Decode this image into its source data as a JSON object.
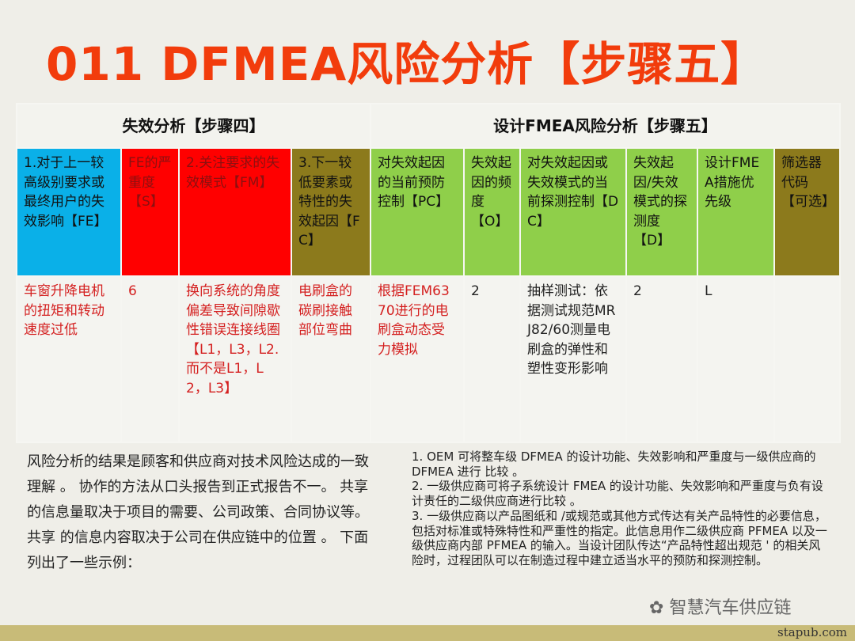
{
  "title": "011 DFMEA风险分析【步骤五】",
  "table": {
    "group_headers": [
      "失效分析【步骤四】",
      "设计FMEA风险分析【步骤五】"
    ],
    "columns": [
      "1.对于上一较高级别要求或最终用户的失效影响【FE】",
      "FE的严重度【S】",
      "2.关注要求的失效模式【FM】",
      "3.下一较低要素或特性的失效起因【FC】",
      "对失效起因的当前预防控制【PC】",
      "失效起因的频度【O】",
      "对失效起因或失效模式的当前探测控制【DC】",
      "失效起因/失效模式的探测度【D】",
      "设计FMEA措施优先级",
      "筛选器代码【可选】"
    ],
    "column_colors": [
      "#0ab0e8",
      "#ff0000",
      "#ff0000",
      "#8c7a1c",
      "#8fcf4a",
      "#8fcf4a",
      "#8fcf4a",
      "#8fcf4a",
      "#8fcf4a",
      "#8c7a1c"
    ],
    "row": [
      "车窗升降电机的扭矩和转动速度过低",
      "6",
      "换向系统的角度偏差导致间隙歇性错误连接线圈【L1，L3，L2.而不是L1，L2，L3】",
      "电刷盒的碳刷接触部位弯曲",
      "根据FEM6370进行的电刷盒动态受力模拟",
      "2",
      "抽样测试：依据测试规范MRJ82/60测量电刷盒的弹性和塑性变形影响",
      "2",
      "L",
      ""
    ]
  },
  "left_text": "风险分析的结果是顾客和供应商对技术风险达成的一致理解 。 协作的方法从口头报告到正式报告不一。 共享的信息量取决于项目的需要、公司政策、合同协议等。共享 的信息内容取决于公司在供应链中的位置 。 下面列出了一些示例：",
  "right_items": [
    "1. OEM 可将整车级 DFMEA 的设计功能、失效影响和严重度与一级供应商的 DFMEA 进行 比较 。",
    "2. 一级供应商可将子系统设计 FMEA 的设计功能、失效影响和严重度与负有设计责任的二级供应商进行比较 。",
    "3. 一级供应商以产品图纸和 /或规范或其他方式传达有关产品特性的必要信息，包括对标准或特殊特性和严重性的指定。此信息用作二级供应商 PFMEA 以及一级供应商内部 PFMEA 的输入。当设计团队传达“产品特性超出规范 ' 的相关风险时，过程团队可以在制造过程中建立适当水平的预防和探测控制。"
  ],
  "watermark": "智慧汽车供应链",
  "site": "stapub.com"
}
